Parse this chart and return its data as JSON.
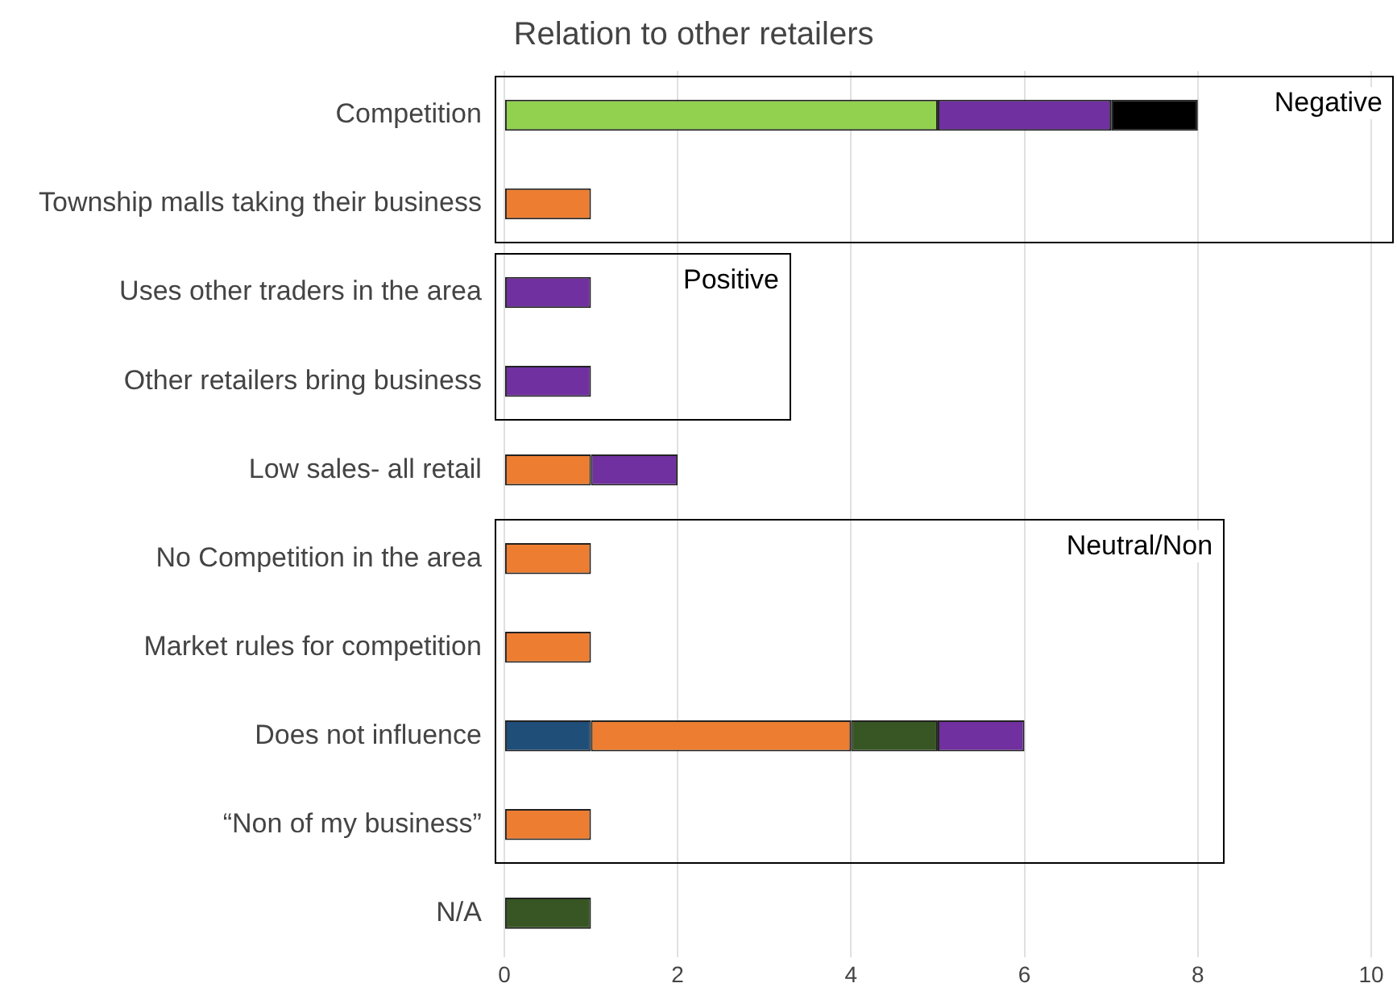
{
  "chart_data": {
    "type": "bar",
    "orientation": "horizontal",
    "stacked": true,
    "title": "Relation to other retailers",
    "categories": [
      "Competition",
      "Township malls taking their business",
      "Uses other traders in the area",
      "Other retailers bring business",
      "Low sales- all retail",
      "No Competition in the area",
      "Market rules for competition",
      "Does not influence",
      "“Non of my business”",
      "N/A"
    ],
    "series": [
      {
        "color": "#1f4e79",
        "values": [
          null,
          null,
          null,
          null,
          null,
          null,
          null,
          1,
          null,
          null
        ]
      },
      {
        "color": "#ed7d31",
        "values": [
          null,
          1,
          null,
          null,
          1,
          1,
          1,
          3,
          1,
          null
        ]
      },
      {
        "color": "#92d050",
        "values": [
          5,
          null,
          null,
          null,
          null,
          null,
          null,
          null,
          null,
          null
        ]
      },
      {
        "color": "#375623",
        "values": [
          null,
          null,
          null,
          null,
          null,
          null,
          null,
          1,
          null,
          1
        ]
      },
      {
        "color": "#7030a0",
        "values": [
          2,
          null,
          1,
          1,
          1,
          null,
          null,
          1,
          null,
          null
        ]
      },
      {
        "color": "#000000",
        "values": [
          1,
          null,
          null,
          null,
          null,
          null,
          null,
          null,
          null,
          null
        ]
      }
    ],
    "xlim": [
      0,
      10
    ],
    "xticks": [
      0,
      2,
      4,
      6,
      8,
      10
    ],
    "grid": "x",
    "annotations": [
      "Negative",
      "Positive",
      "Neutral/Non"
    ]
  }
}
